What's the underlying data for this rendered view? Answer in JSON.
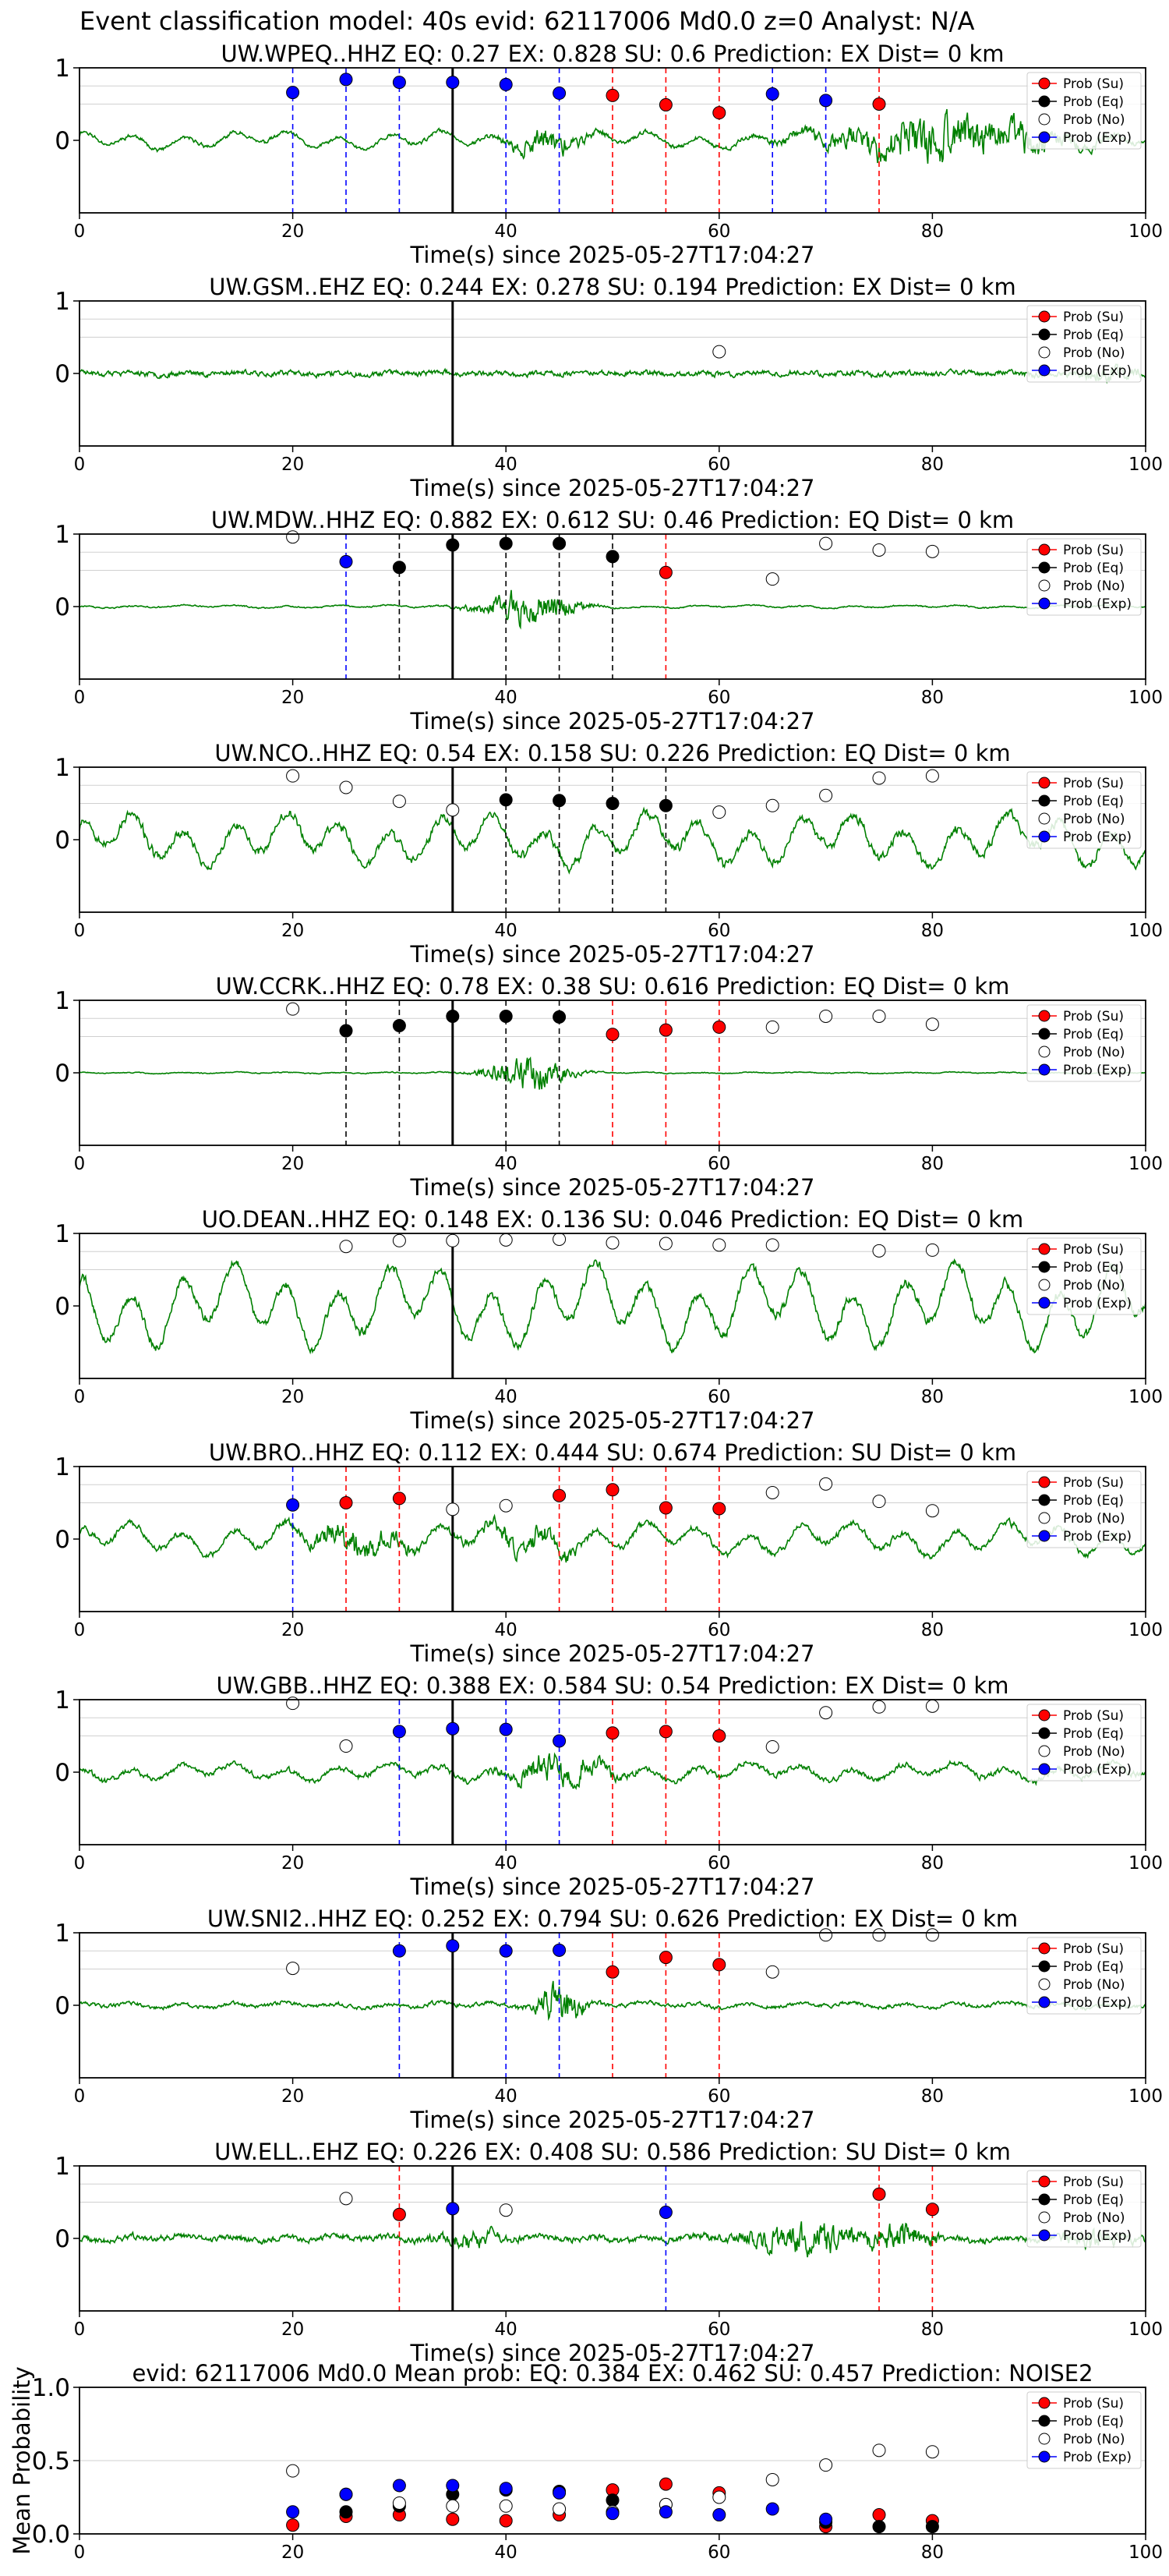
{
  "suptitle": "Event classification model: 40s evid: 62117006 Md0.0 z=0 Analyst: N/A",
  "colors": {
    "trace": "#008000",
    "su": "#ff0000",
    "eq": "#000000",
    "no": "#ffffff",
    "exp": "#0000ff",
    "grid": "#d0d0d0"
  },
  "legend": [
    "Prob (Su)",
    "Prob (Eq)",
    "Prob (No)",
    "Prob (Exp)"
  ],
  "chart_data": [
    {
      "type": "line",
      "title": "UW.WPEQ..HHZ   EQ: 0.27  EX: 0.828  SU: 0.6   Prediction: EX    Dist= 0 km",
      "xlabel": "Time(s) since 2025-05-27T17:04:27",
      "xlim": [
        0,
        100
      ],
      "ylim": [
        -1,
        1
      ],
      "xticks": [
        0,
        20,
        40,
        60,
        80,
        100
      ],
      "yticks": [
        "1",
        "0"
      ],
      "legend_loc": "top-right",
      "trace_profile": {
        "seed": 11,
        "base": 0.08,
        "slow": 0.12,
        "bursts": [
          [
            44,
            5,
            0.45
          ],
          [
            79,
            14,
            0.55
          ],
          [
            84,
            12,
            0.5
          ]
        ]
      },
      "pick_line": 35,
      "points": [
        [
          20,
          0.66,
          "exp"
        ],
        [
          25,
          0.84,
          "exp"
        ],
        [
          30,
          0.8,
          "exp"
        ],
        [
          35,
          0.8,
          "exp"
        ],
        [
          40,
          0.77,
          "exp"
        ],
        [
          45,
          0.65,
          "exp"
        ],
        [
          50,
          0.62,
          "su"
        ],
        [
          55,
          0.49,
          "su"
        ],
        [
          60,
          0.38,
          "su"
        ],
        [
          65,
          0.64,
          "exp"
        ],
        [
          70,
          0.55,
          "exp"
        ],
        [
          75,
          0.5,
          "su"
        ]
      ]
    },
    {
      "type": "line",
      "title": "UW.GSM..EHZ   EQ: 0.244  EX: 0.278  SU: 0.194   Prediction: EX    Dist= 0 km",
      "xlabel": "Time(s) since 2025-05-27T17:04:27",
      "xlim": [
        0,
        100
      ],
      "ylim": [
        -1,
        1
      ],
      "xticks": [
        0,
        20,
        40,
        60,
        80,
        100
      ],
      "yticks": [
        "1",
        "0"
      ],
      "legend_loc": "top-right",
      "trace_profile": {
        "seed": 23,
        "base": 0.12,
        "slow": 0.02,
        "bursts": [
          [
            97,
            4,
            0.3
          ]
        ]
      },
      "pick_line": 35,
      "points": [
        [
          60,
          0.3,
          "no"
        ]
      ]
    },
    {
      "type": "line",
      "title": "UW.MDW..HHZ   EQ: 0.882  EX: 0.612  SU: 0.46   Prediction: EQ    Dist= 0 km",
      "xlabel": "Time(s) since 2025-05-27T17:04:27",
      "xlim": [
        0,
        100
      ],
      "ylim": [
        -1,
        1
      ],
      "xticks": [
        0,
        20,
        40,
        60,
        80,
        100
      ],
      "yticks": [
        "1",
        "0"
      ],
      "legend_loc": "top-right",
      "trace_profile": {
        "seed": 37,
        "base": 0.03,
        "slow": 0.02,
        "bursts": [
          [
            42,
            6,
            0.75
          ]
        ]
      },
      "pick_line": 35,
      "points": [
        [
          20,
          0.96,
          "no"
        ],
        [
          25,
          0.62,
          "exp"
        ],
        [
          30,
          0.54,
          "eq"
        ],
        [
          35,
          0.85,
          "eq"
        ],
        [
          40,
          0.87,
          "eq"
        ],
        [
          45,
          0.87,
          "eq"
        ],
        [
          50,
          0.69,
          "eq"
        ],
        [
          55,
          0.47,
          "su"
        ],
        [
          65,
          0.38,
          "no"
        ],
        [
          70,
          0.87,
          "no"
        ],
        [
          75,
          0.78,
          "no"
        ],
        [
          80,
          0.76,
          "no"
        ]
      ]
    },
    {
      "type": "line",
      "title": "UW.NCO..HHZ   EQ: 0.54  EX: 0.158  SU: 0.226   Prediction: EQ    Dist= 0 km",
      "xlabel": "Time(s) since 2025-05-27T17:04:27",
      "xlim": [
        0,
        100
      ],
      "ylim": [
        -1,
        1
      ],
      "xticks": [
        0,
        20,
        40,
        60,
        80,
        100
      ],
      "yticks": [
        "1",
        "0"
      ],
      "legend_loc": "top-right",
      "trace_profile": {
        "seed": 53,
        "base": 0.18,
        "slow": 0.35,
        "bursts": []
      },
      "pick_line": 35,
      "points": [
        [
          20,
          0.88,
          "no"
        ],
        [
          25,
          0.72,
          "no"
        ],
        [
          30,
          0.53,
          "no"
        ],
        [
          35,
          0.41,
          "no"
        ],
        [
          40,
          0.55,
          "eq"
        ],
        [
          45,
          0.54,
          "eq"
        ],
        [
          50,
          0.5,
          "eq"
        ],
        [
          55,
          0.47,
          "eq"
        ],
        [
          60,
          0.38,
          "no"
        ],
        [
          65,
          0.47,
          "no"
        ],
        [
          70,
          0.61,
          "no"
        ],
        [
          75,
          0.85,
          "no"
        ],
        [
          80,
          0.88,
          "no"
        ]
      ]
    },
    {
      "type": "line",
      "title": "UW.CCRK..HHZ   EQ: 0.78  EX: 0.38  SU: 0.616   Prediction: EQ    Dist= 0 km",
      "xlabel": "Time(s) since 2025-05-27T17:04:27",
      "xlim": [
        0,
        100
      ],
      "ylim": [
        -1,
        1
      ],
      "xticks": [
        0,
        20,
        40,
        60,
        80,
        100
      ],
      "yticks": [
        "1",
        "0"
      ],
      "legend_loc": "top-right",
      "trace_profile": {
        "seed": 67,
        "base": 0.02,
        "slow": 0.01,
        "bursts": [
          [
            42,
            5,
            0.8
          ]
        ]
      },
      "pick_line": 35,
      "points": [
        [
          20,
          0.88,
          "no"
        ],
        [
          25,
          0.58,
          "eq"
        ],
        [
          30,
          0.65,
          "eq"
        ],
        [
          35,
          0.78,
          "eq"
        ],
        [
          40,
          0.78,
          "eq"
        ],
        [
          45,
          0.77,
          "eq"
        ],
        [
          50,
          0.53,
          "su"
        ],
        [
          55,
          0.59,
          "su"
        ],
        [
          60,
          0.63,
          "su"
        ],
        [
          65,
          0.63,
          "no"
        ],
        [
          70,
          0.78,
          "no"
        ],
        [
          75,
          0.78,
          "no"
        ],
        [
          80,
          0.67,
          "no"
        ]
      ]
    },
    {
      "type": "line",
      "title": "UO.DEAN..HHZ   EQ: 0.148  EX: 0.136  SU: 0.046   Prediction: EQ    Dist= 0 km",
      "xlabel": "Time(s) since 2025-05-27T17:04:27",
      "xlim": [
        0,
        100
      ],
      "ylim": [
        -1,
        1
      ],
      "xticks": [
        0,
        20,
        40,
        60,
        80,
        100
      ],
      "yticks": [
        "1",
        "0"
      ],
      "legend_loc": "top-right",
      "trace_profile": {
        "seed": 79,
        "base": 0.1,
        "slow": 0.55,
        "bursts": []
      },
      "pick_line": 35,
      "points": [
        [
          25,
          0.82,
          "no"
        ],
        [
          30,
          0.9,
          "no"
        ],
        [
          35,
          0.9,
          "no"
        ],
        [
          40,
          0.91,
          "no"
        ],
        [
          45,
          0.92,
          "no"
        ],
        [
          50,
          0.87,
          "no"
        ],
        [
          55,
          0.86,
          "no"
        ],
        [
          60,
          0.84,
          "no"
        ],
        [
          65,
          0.84,
          "no"
        ],
        [
          75,
          0.76,
          "no"
        ],
        [
          80,
          0.77,
          "no"
        ]
      ]
    },
    {
      "type": "line",
      "title": "UW.BRO..HHZ   EQ: 0.112  EX: 0.444  SU: 0.674   Prediction: SU    Dist= 0 km",
      "xlabel": "Time(s) since 2025-05-27T17:04:27",
      "xlim": [
        0,
        100
      ],
      "ylim": [
        -1,
        1
      ],
      "xticks": [
        0,
        20,
        40,
        60,
        80,
        100
      ],
      "yticks": [
        "1",
        "0"
      ],
      "legend_loc": "top-right",
      "trace_profile": {
        "seed": 97,
        "base": 0.12,
        "slow": 0.22,
        "bursts": [
          [
            26,
            6,
            0.55
          ],
          [
            42,
            6,
            0.4
          ]
        ]
      },
      "pick_line": 35,
      "points": [
        [
          20,
          0.47,
          "exp"
        ],
        [
          25,
          0.5,
          "su"
        ],
        [
          30,
          0.56,
          "su"
        ],
        [
          35,
          0.41,
          "no"
        ],
        [
          40,
          0.46,
          "no"
        ],
        [
          45,
          0.6,
          "su"
        ],
        [
          50,
          0.68,
          "su"
        ],
        [
          55,
          0.43,
          "su"
        ],
        [
          60,
          0.42,
          "su"
        ],
        [
          65,
          0.64,
          "no"
        ],
        [
          70,
          0.76,
          "no"
        ],
        [
          75,
          0.52,
          "no"
        ],
        [
          80,
          0.39,
          "no"
        ]
      ]
    },
    {
      "type": "line",
      "title": "UW.GBB..HHZ   EQ: 0.388  EX: 0.584  SU: 0.54   Prediction: EX    Dist= 0 km",
      "xlabel": "Time(s) since 2025-05-27T17:04:27",
      "xlim": [
        0,
        100
      ],
      "ylim": [
        -1,
        1
      ],
      "xticks": [
        0,
        20,
        40,
        60,
        80,
        100
      ],
      "yticks": [
        "1",
        "0"
      ],
      "legend_loc": "top-right",
      "trace_profile": {
        "seed": 113,
        "base": 0.12,
        "slow": 0.12,
        "bursts": [
          [
            45,
            6,
            0.6
          ]
        ]
      },
      "pick_line": 35,
      "points": [
        [
          20,
          0.95,
          "no"
        ],
        [
          25,
          0.36,
          "no"
        ],
        [
          30,
          0.56,
          "exp"
        ],
        [
          35,
          0.6,
          "exp"
        ],
        [
          40,
          0.59,
          "exp"
        ],
        [
          45,
          0.43,
          "exp"
        ],
        [
          50,
          0.54,
          "su"
        ],
        [
          55,
          0.56,
          "su"
        ],
        [
          60,
          0.5,
          "su"
        ],
        [
          65,
          0.35,
          "no"
        ],
        [
          70,
          0.82,
          "no"
        ],
        [
          75,
          0.9,
          "no"
        ],
        [
          80,
          0.91,
          "no"
        ]
      ]
    },
    {
      "type": "line",
      "title": "UW.SNI2..HHZ   EQ: 0.252  EX: 0.794  SU: 0.626   Prediction: EX    Dist= 0 km",
      "xlabel": "Time(s) since 2025-05-27T17:04:27",
      "xlim": [
        0,
        100
      ],
      "ylim": [
        -1,
        1
      ],
      "xticks": [
        0,
        20,
        40,
        60,
        80,
        100
      ],
      "yticks": [
        "1",
        "0"
      ],
      "legend_loc": "top-right",
      "trace_profile": {
        "seed": 131,
        "base": 0.09,
        "slow": 0.04,
        "bursts": [
          [
            45,
            3,
            0.9
          ]
        ]
      },
      "pick_line": 35,
      "points": [
        [
          20,
          0.51,
          "no"
        ],
        [
          30,
          0.75,
          "exp"
        ],
        [
          35,
          0.82,
          "exp"
        ],
        [
          40,
          0.75,
          "exp"
        ],
        [
          45,
          0.76,
          "exp"
        ],
        [
          50,
          0.46,
          "su"
        ],
        [
          55,
          0.66,
          "su"
        ],
        [
          60,
          0.56,
          "su"
        ],
        [
          65,
          0.46,
          "no"
        ],
        [
          70,
          0.97,
          "no"
        ],
        [
          75,
          0.97,
          "no"
        ],
        [
          80,
          0.97,
          "no"
        ]
      ]
    },
    {
      "type": "line",
      "title": "UW.ELL..EHZ   EQ: 0.226  EX: 0.408  SU: 0.586   Prediction: SU    Dist= 0 km",
      "xlabel": "Time(s) since 2025-05-27T17:04:27",
      "xlim": [
        0,
        100
      ],
      "ylim": [
        -1,
        1
      ],
      "xticks": [
        0,
        20,
        40,
        60,
        80,
        100
      ],
      "yticks": [
        "1",
        "0"
      ],
      "legend_loc": "top-right",
      "trace_profile": {
        "seed": 149,
        "base": 0.14,
        "slow": 0.04,
        "bursts": [
          [
            37,
            4,
            0.3
          ],
          [
            68,
            7,
            0.65
          ],
          [
            77,
            4,
            0.55
          ],
          [
            95,
            4,
            0.4
          ]
        ]
      },
      "pick_line": 35,
      "points": [
        [
          25,
          0.55,
          "no"
        ],
        [
          30,
          0.33,
          "su"
        ],
        [
          35,
          0.41,
          "exp"
        ],
        [
          40,
          0.39,
          "no"
        ],
        [
          55,
          0.36,
          "exp"
        ],
        [
          75,
          0.61,
          "su"
        ],
        [
          80,
          0.4,
          "su"
        ]
      ]
    },
    {
      "type": "scatter",
      "title": "evid: 62117006  Md0.0   Mean prob:   EQ: 0.384  EX: 0.462  SU: 0.457   Prediction: NOISE2",
      "ylabel": "Mean Probability",
      "xlim": [
        0,
        100
      ],
      "ylim": [
        0,
        1
      ],
      "xticks": [
        0,
        20,
        40,
        60,
        80,
        100
      ],
      "yticks": [
        "0.0",
        "0.5",
        "1.0"
      ],
      "legend_loc": "top-right",
      "series": [
        {
          "name": "Prob (Su)",
          "key": "su",
          "x": [
            20,
            25,
            30,
            35,
            40,
            45,
            50,
            55,
            60,
            70,
            75,
            80
          ],
          "values": [
            0.06,
            0.12,
            0.13,
            0.1,
            0.09,
            0.13,
            0.3,
            0.34,
            0.28,
            0.05,
            0.13,
            0.09
          ]
        },
        {
          "name": "Prob (Eq)",
          "key": "eq",
          "x": [
            25,
            30,
            35,
            40,
            45,
            50,
            55,
            70,
            75,
            80
          ],
          "values": [
            0.15,
            0.19,
            0.27,
            0.3,
            0.29,
            0.23,
            0.2,
            0.08,
            0.05,
            0.05
          ]
        },
        {
          "name": "Prob (No)",
          "key": "no",
          "x": [
            20,
            25,
            30,
            35,
            40,
            45,
            50,
            55,
            60,
            65,
            70,
            75,
            80
          ],
          "values": [
            0.43,
            0.27,
            0.21,
            0.19,
            0.19,
            0.17,
            0.15,
            0.2,
            0.25,
            0.37,
            0.47,
            0.57,
            0.56
          ]
        },
        {
          "name": "Prob (Exp)",
          "key": "exp",
          "x": [
            20,
            25,
            30,
            35,
            40,
            45,
            50,
            55,
            60,
            65,
            70
          ],
          "values": [
            0.15,
            0.27,
            0.33,
            0.33,
            0.31,
            0.28,
            0.14,
            0.15,
            0.13,
            0.17,
            0.1
          ]
        }
      ]
    }
  ]
}
